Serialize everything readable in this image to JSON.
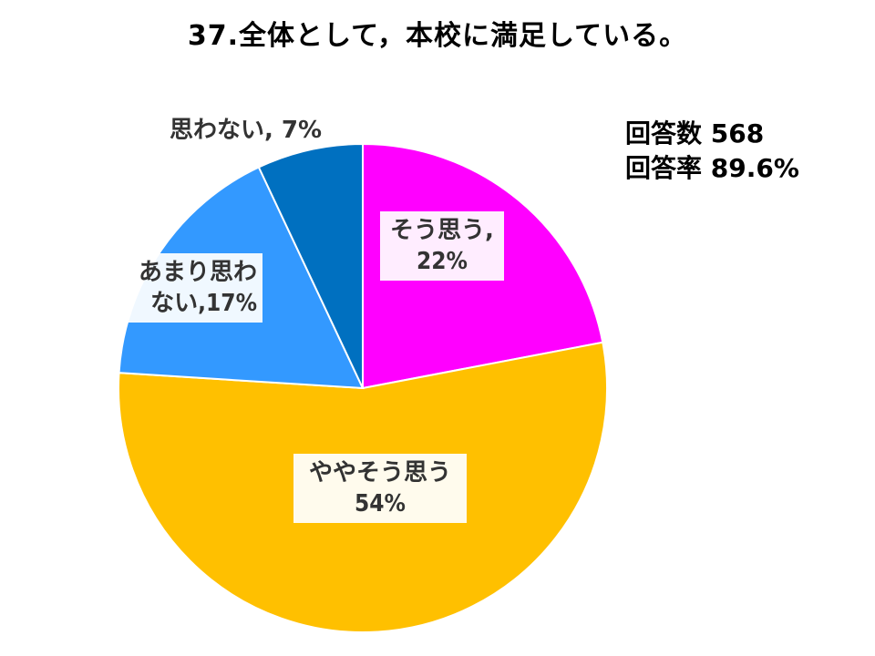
{
  "title": "37.全体として，本校に満足している。",
  "response_info": {
    "count_label": "回答数 568",
    "rate_label": "回答率 89.6%"
  },
  "colors": {
    "そう思う": "#ff00ff",
    "ややそう思う": "#ffc000",
    "あまり思わない": "#3399ff",
    "思わない": "#0070c0"
  },
  "chart_data": {
    "type": "pie",
    "title": "37.全体として，本校に満足している。",
    "slices": [
      {
        "name": "そう思う",
        "value": 22,
        "color": "#ff00ff",
        "label_line1": "そう思う,",
        "label_line2": "22%"
      },
      {
        "name": "ややそう思う",
        "value": 54,
        "color": "#ffc000",
        "label_line1": "ややそう思う",
        "label_line2": "54%"
      },
      {
        "name": "あまり思わない",
        "value": 17,
        "color": "#3399ff",
        "label_line1": "あまり思わ",
        "label_line2": "ない,17%"
      },
      {
        "name": "思わない",
        "value": 7,
        "color": "#0070c0",
        "label_line1": "思わない, 7%",
        "label_line2": ""
      }
    ]
  }
}
